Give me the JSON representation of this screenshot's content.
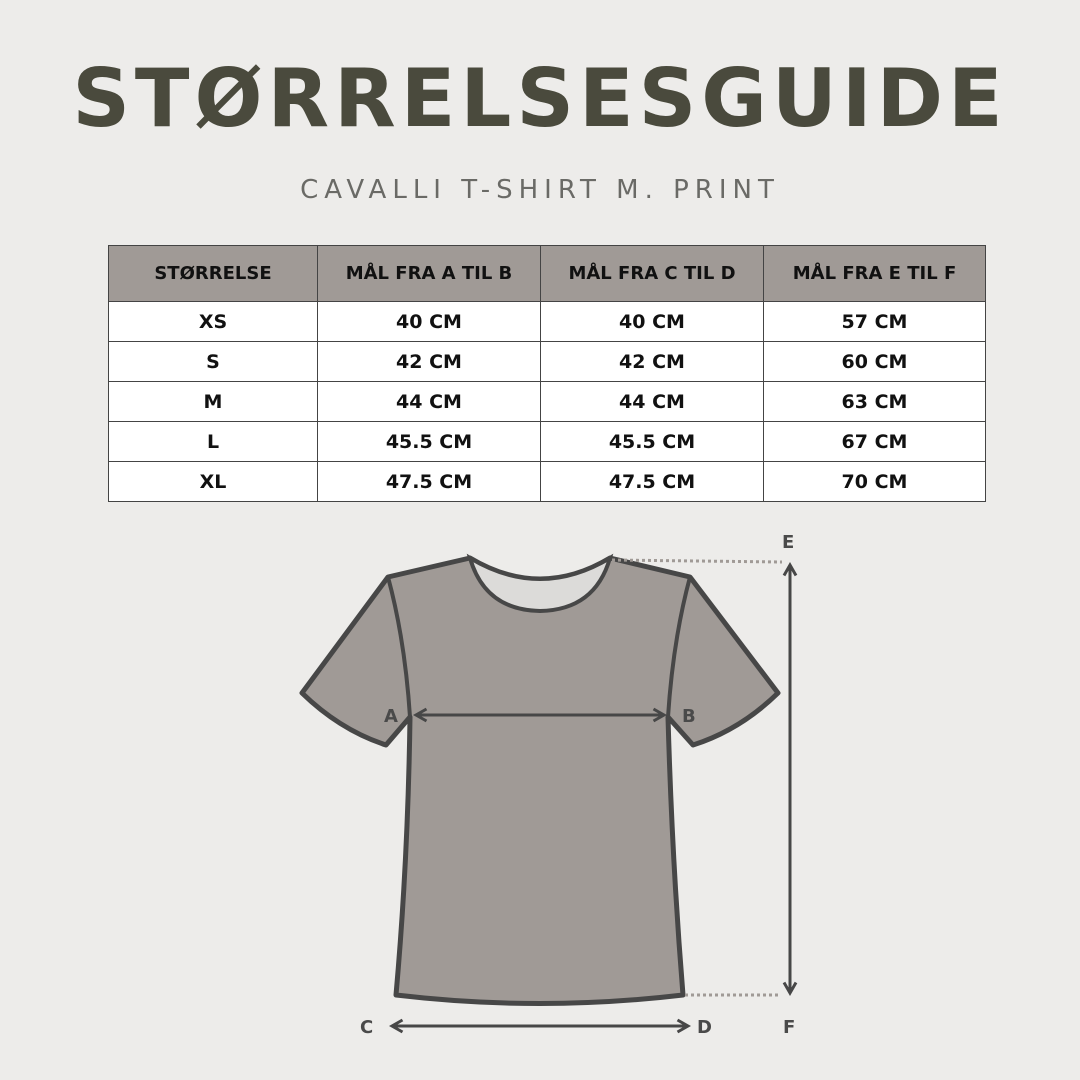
{
  "title": "STØRRELSESGUIDE",
  "subtitle": "CAVALLI T-SHIRT M. PRINT",
  "table": {
    "headers": [
      "STØRRELSE",
      "MÅL FRA A TIL B",
      "MÅL FRA C TIL D",
      "MÅL FRA E TIL F"
    ],
    "rows": [
      [
        "XS",
        "40 CM",
        "40 CM",
        "57 CM"
      ],
      [
        "S",
        "42 CM",
        "42 CM",
        "60 CM"
      ],
      [
        "M",
        "44 CM",
        "44 CM",
        "63 CM"
      ],
      [
        "L",
        "45.5 CM",
        "45.5 CM",
        "67 CM"
      ],
      [
        "XL",
        "47.5 CM",
        "47.5 CM",
        "70 CM"
      ]
    ]
  },
  "diagram": {
    "labels": {
      "a": "A",
      "b": "B",
      "c": "C",
      "d": "D",
      "e": "E",
      "f": "F"
    },
    "colors": {
      "shirt": "#a09a96",
      "outline": "#474747",
      "neck": "#dcdbd9",
      "background": "#edecea"
    }
  }
}
